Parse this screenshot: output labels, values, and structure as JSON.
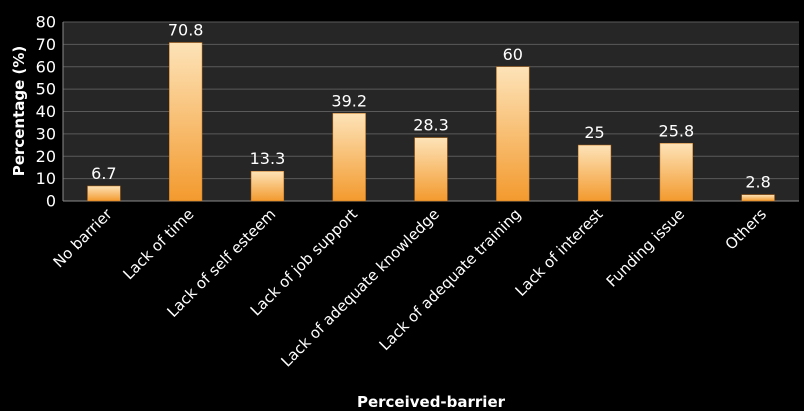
{
  "chart_data": {
    "type": "bar",
    "categories": [
      "No barrier",
      "Lack of time",
      "Lack of self esteem",
      "Lack of job support",
      "Lack of adequate knowledge",
      "Lack of adequate training",
      "Lack of interest",
      "Funding issue",
      "Others"
    ],
    "values": [
      6.7,
      70.8,
      13.3,
      39.2,
      28.3,
      60,
      25,
      25.8,
      2.8
    ],
    "value_labels": [
      "6.7",
      "70.8",
      "13.3",
      "39.2",
      "28.3",
      "60",
      "25",
      "25.8",
      "2.8"
    ],
    "title": "",
    "xlabel": "Perceived-barrier",
    "ylabel": "Percentage (%)",
    "ylim": [
      0,
      80
    ],
    "yticks": [
      0,
      10,
      20,
      30,
      40,
      50,
      60,
      70,
      80
    ],
    "grid": true,
    "legend": "none",
    "colors": {
      "background": "#000000",
      "plot_area": "#262626",
      "bar_top": "#fde3b8",
      "bar_bottom": "#f39a2e",
      "text": "#ffffff"
    }
  }
}
